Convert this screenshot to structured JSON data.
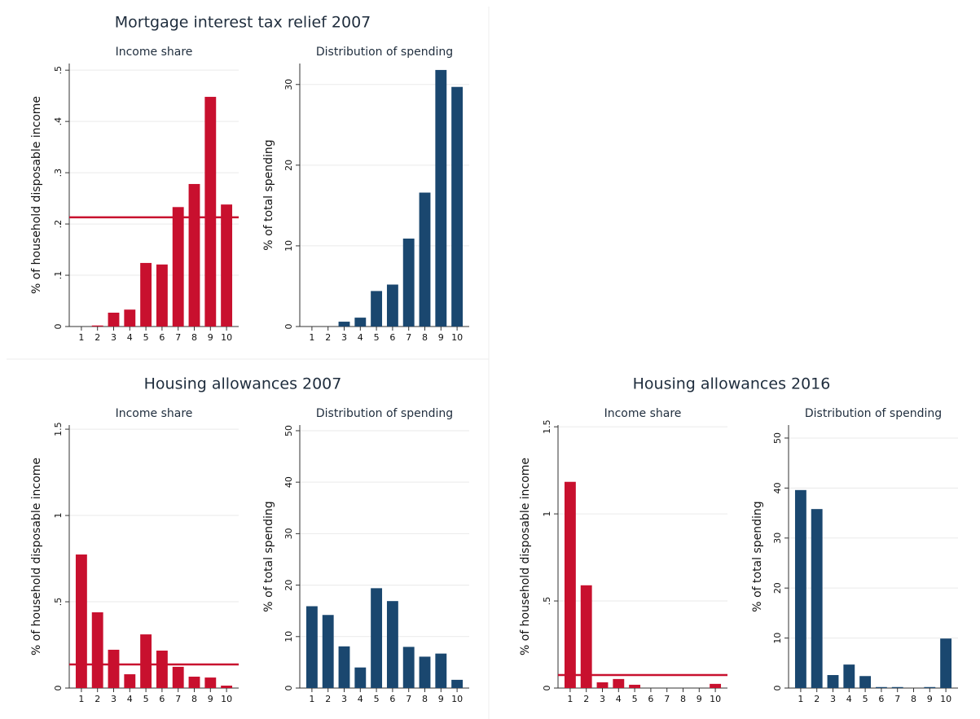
{
  "panels": [
    {
      "title": "Mortgage interest tax relief 2007",
      "chart_data": [
        {
          "type": "bar",
          "title": "Income share",
          "ylabel": "% of household disposable income",
          "categories": [
            "1",
            "2",
            "3",
            "4",
            "5",
            "6",
            "7",
            "8",
            "9",
            "10"
          ],
          "values": [
            0,
            0.002,
            0.027,
            0.033,
            0.124,
            0.121,
            0.233,
            0.278,
            0.448,
            0.238
          ],
          "color": "#c8102e",
          "ylim": [
            0,
            0.513
          ],
          "yticks": [
            0,
            {
              "value": 0.1,
              "label": ".1"
            },
            {
              "value": 0.2,
              "label": ".2"
            },
            {
              "value": 0.3,
              "label": ".3"
            },
            {
              "value": 0.4,
              "label": ".4"
            },
            {
              "value": 0.5,
              "label": ".5"
            }
          ],
          "grid": true,
          "hline": {
            "value": 0.213,
            "color": "#c8102e"
          }
        },
        {
          "type": "bar",
          "title": "Distribution of spending",
          "ylabel": "% of total spending",
          "categories": [
            "1",
            "2",
            "3",
            "4",
            "5",
            "6",
            "7",
            "8",
            "9",
            "10"
          ],
          "values": [
            0,
            0,
            0.6,
            1.1,
            4.4,
            5.2,
            10.9,
            16.6,
            31.8,
            29.7
          ],
          "color": "#1a476f",
          "ylim": [
            0,
            32.6
          ],
          "yticks": [
            0,
            10,
            20,
            30
          ],
          "grid": true
        }
      ]
    },
    {
      "title": "Housing allowances 2007",
      "chart_data": [
        {
          "type": "bar",
          "title": "Income share",
          "ylabel": "% of household disposable income",
          "categories": [
            "1",
            "2",
            "3",
            "4",
            "5",
            "6",
            "7",
            "8",
            "9",
            "10"
          ],
          "values": [
            0.774,
            0.439,
            0.222,
            0.08,
            0.311,
            0.217,
            0.123,
            0.066,
            0.061,
            0.014
          ],
          "color": "#c8102e",
          "ylim": [
            0,
            1.524
          ],
          "yticks": [
            0,
            {
              "value": 0.5,
              "label": ".5"
            },
            1,
            1.5
          ],
          "grid": true,
          "hline": {
            "value": 0.137,
            "color": "#c8102e"
          }
        },
        {
          "type": "bar",
          "title": "Distribution of spending",
          "ylabel": "% of total spending",
          "categories": [
            "1",
            "2",
            "3",
            "4",
            "5",
            "6",
            "7",
            "8",
            "9",
            "10"
          ],
          "values": [
            15.9,
            14.2,
            8.1,
            4.0,
            19.4,
            16.9,
            8.0,
            6.1,
            6.7,
            1.6
          ],
          "color": "#1a476f",
          "ylim": [
            0,
            51.1
          ],
          "yticks": [
            0,
            10,
            20,
            30,
            40,
            50
          ],
          "grid": true
        }
      ]
    },
    {
      "title": "Housing allowances 2016",
      "chart_data": [
        {
          "type": "bar",
          "title": "Income share",
          "ylabel": "% of household disposable income",
          "categories": [
            "1",
            "2",
            "3",
            "4",
            "5",
            "6",
            "7",
            "8",
            "9",
            "10"
          ],
          "values": [
            1.184,
            0.59,
            0.033,
            0.052,
            0.019,
            0,
            0,
            0,
            0,
            0.024
          ],
          "color": "#c8102e",
          "ylim": [
            0,
            1.51
          ],
          "yticks": [
            0,
            {
              "value": 0.5,
              "label": ".5"
            },
            1,
            1.5
          ],
          "grid": true,
          "hline": {
            "value": 0.075,
            "color": "#c8102e"
          }
        },
        {
          "type": "bar",
          "title": "Distribution of spending",
          "ylabel": "% of total spending",
          "categories": [
            "1",
            "2",
            "3",
            "4",
            "5",
            "6",
            "7",
            "8",
            "9",
            "10"
          ],
          "values": [
            39.6,
            35.8,
            2.6,
            4.7,
            2.4,
            0.2,
            0.2,
            0,
            0.2,
            9.9
          ],
          "color": "#1a476f",
          "ylim": [
            0,
            52.6
          ],
          "yticks": [
            0,
            10,
            20,
            30,
            40,
            50
          ],
          "grid": true
        }
      ]
    }
  ]
}
